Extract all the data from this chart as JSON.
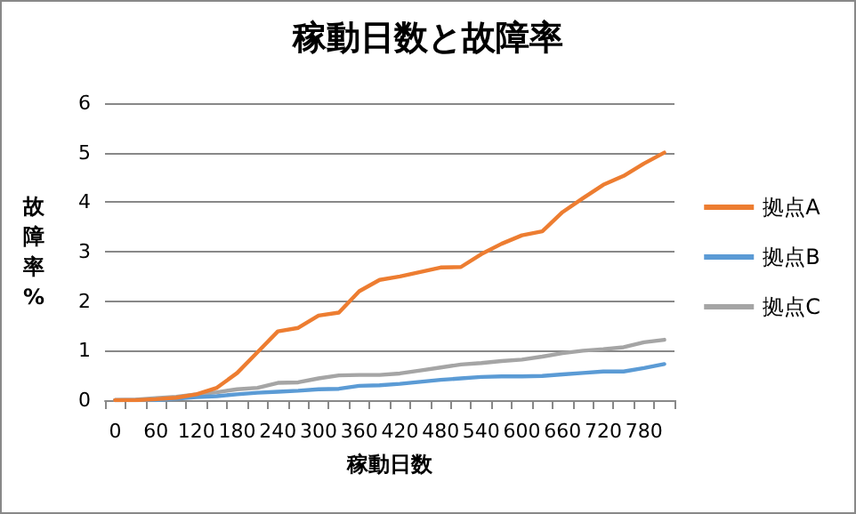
{
  "chart_data": {
    "type": "line",
    "title": "稼動日数と故障率",
    "xlabel": "稼動日数",
    "ylabel": "故障率%",
    "categories": [
      "0",
      null,
      "60",
      null,
      "120",
      null,
      "180",
      null,
      "240",
      null,
      "300",
      null,
      "360",
      null,
      "420",
      null,
      "480",
      null,
      "540",
      null,
      "600",
      null,
      "660",
      null,
      "720",
      null,
      "780",
      null
    ],
    "series": [
      {
        "name": "拠点A",
        "color": "#ed7d31",
        "values": [
          0,
          0,
          0.02,
          0.05,
          0.12,
          0.25,
          0.55,
          0.97,
          1.39,
          1.46,
          1.71,
          1.77,
          2.2,
          2.43,
          2.5,
          2.59,
          2.68,
          2.69,
          2.95,
          3.16,
          3.33,
          3.41,
          3.8,
          4.08,
          4.35,
          4.53,
          4.78,
          5.0
        ]
      },
      {
        "name": "拠点B",
        "color": "#5b9bd5",
        "values": [
          0,
          0,
          0,
          0.03,
          0.06,
          0.08,
          0.12,
          0.15,
          0.17,
          0.19,
          0.22,
          0.23,
          0.29,
          0.3,
          0.33,
          0.37,
          0.41,
          0.44,
          0.47,
          0.48,
          0.48,
          0.49,
          0.52,
          0.55,
          0.58,
          0.58,
          0.65,
          0.73
        ]
      },
      {
        "name": "拠点C",
        "color": "#a5a5a5",
        "values": [
          0,
          0.01,
          0.04,
          0.07,
          0.12,
          0.16,
          0.22,
          0.25,
          0.35,
          0.36,
          0.44,
          0.5,
          0.51,
          0.51,
          0.54,
          0.6,
          0.66,
          0.72,
          0.75,
          0.79,
          0.82,
          0.88,
          0.95,
          1.0,
          1.03,
          1.07,
          1.17,
          1.22
        ]
      }
    ],
    "ylim": [
      0,
      6
    ],
    "yticks": [
      0,
      1,
      2,
      3,
      4,
      5,
      6
    ],
    "grid": "y",
    "legend": "right",
    "marker": "none",
    "line_style": "solid"
  }
}
